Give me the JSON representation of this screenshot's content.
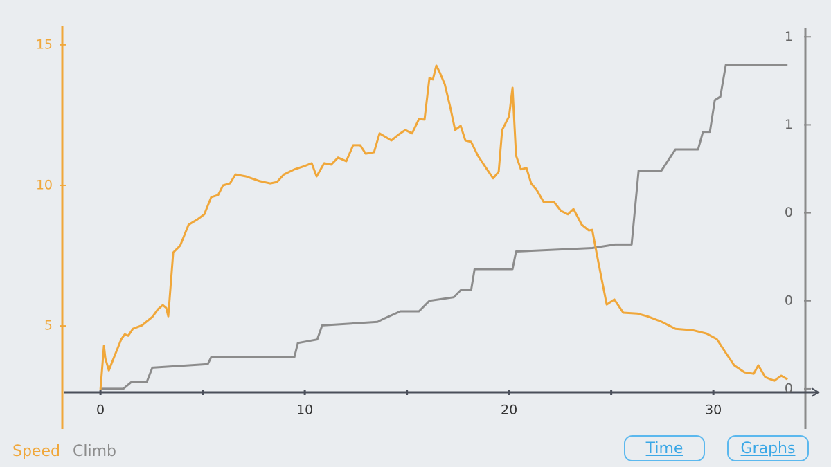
{
  "chart_data": {
    "type": "line",
    "xlim": [
      -1.8,
      35.08
    ],
    "xticks": [
      0,
      10,
      20,
      30
    ],
    "xminorticks": [
      5,
      15,
      25
    ],
    "ylim": [
      2.64,
      15.66
    ],
    "yticks": [
      5,
      10,
      15
    ],
    "y2lim": [
      -0.01,
      1.03
    ],
    "y2ticks": [
      {
        "value": 0,
        "label": "0"
      },
      {
        "value": 0.25,
        "label": "0"
      },
      {
        "value": 0.5,
        "label": "0"
      },
      {
        "value": 0.75,
        "label": "1"
      },
      {
        "value": 1.0,
        "label": "1"
      }
    ],
    "grid": false,
    "series": [
      {
        "name": "Speed",
        "color": "#f0a73a",
        "x": [
          0,
          0.17,
          0.24,
          0.41,
          0.61,
          1.02,
          1.19,
          1.36,
          1.59,
          2.03,
          2.54,
          2.81,
          3.05,
          3.22,
          3.32,
          3.56,
          3.9,
          4.31,
          4.75,
          5.08,
          5.42,
          5.76,
          6.0,
          6.34,
          6.61,
          7.12,
          7.8,
          8.31,
          8.64,
          8.98,
          9.49,
          10.0,
          10.34,
          10.58,
          10.95,
          11.29,
          11.63,
          12.03,
          12.37,
          12.71,
          12.98,
          13.39,
          13.66,
          14.24,
          14.58,
          14.92,
          15.25,
          15.59,
          15.86,
          16.1,
          16.27,
          16.44,
          16.61,
          16.85,
          17.12,
          17.36,
          17.63,
          17.86,
          18.14,
          18.47,
          18.81,
          19.22,
          19.49,
          19.66,
          20.0,
          20.17,
          20.34,
          20.58,
          20.85,
          21.08,
          21.36,
          21.69,
          22.2,
          22.54,
          22.88,
          23.15,
          23.56,
          23.9,
          24.07,
          24.31,
          24.58,
          24.78,
          25.15,
          25.59,
          26.27,
          26.78,
          27.46,
          28.14,
          28.98,
          29.66,
          30.17,
          30.61,
          31.02,
          31.53,
          31.97,
          32.2,
          32.54,
          32.98,
          33.32,
          33.63
        ],
        "values": [
          2.74,
          4.29,
          3.84,
          3.42,
          3.79,
          4.53,
          4.7,
          4.65,
          4.9,
          5.02,
          5.32,
          5.59,
          5.74,
          5.64,
          5.34,
          7.61,
          7.86,
          8.6,
          8.79,
          8.97,
          9.58,
          9.66,
          10.0,
          10.07,
          10.39,
          10.32,
          10.15,
          10.07,
          10.12,
          10.39,
          10.57,
          10.69,
          10.79,
          10.32,
          10.79,
          10.74,
          10.99,
          10.86,
          11.43,
          11.43,
          11.13,
          11.18,
          11.85,
          11.6,
          11.8,
          11.97,
          11.85,
          12.36,
          12.34,
          13.82,
          13.77,
          14.26,
          14.01,
          13.6,
          12.78,
          11.97,
          12.12,
          11.6,
          11.55,
          11.06,
          10.69,
          10.25,
          10.49,
          11.97,
          12.46,
          13.47,
          11.06,
          10.57,
          10.62,
          10.07,
          9.83,
          9.41,
          9.41,
          9.09,
          8.97,
          9.16,
          8.6,
          8.4,
          8.42,
          7.49,
          6.5,
          5.76,
          5.94,
          5.47,
          5.44,
          5.34,
          5.15,
          4.9,
          4.85,
          4.73,
          4.53,
          4.04,
          3.6,
          3.35,
          3.3,
          3.6,
          3.18,
          3.05,
          3.23,
          3.1
        ]
      },
      {
        "name": "Climb",
        "color": "#8c8c8c",
        "axis": "y2",
        "x": [
          0,
          1.12,
          1.53,
          2.27,
          2.54,
          5.25,
          5.42,
          9.49,
          9.66,
          10.61,
          10.85,
          13.56,
          13.9,
          14.68,
          15.59,
          16.1,
          17.29,
          17.63,
          18.14,
          18.31,
          20.17,
          20.34,
          24.07,
          25.19,
          26.0,
          26.34,
          27.46,
          28.14,
          29.25,
          29.49,
          29.83,
          30.07,
          30.34,
          30.61,
          33.63
        ],
        "values": [
          0,
          0,
          0.02,
          0.02,
          0.06,
          0.07,
          0.09,
          0.09,
          0.13,
          0.14,
          0.18,
          0.19,
          0.2,
          0.22,
          0.22,
          0.25,
          0.26,
          0.28,
          0.28,
          0.34,
          0.34,
          0.39,
          0.4,
          0.41,
          0.41,
          0.62,
          0.62,
          0.68,
          0.68,
          0.73,
          0.73,
          0.82,
          0.83,
          0.92,
          0.92
        ]
      }
    ]
  },
  "ui": {
    "buttons": [
      "Time",
      "Graphs"
    ]
  }
}
